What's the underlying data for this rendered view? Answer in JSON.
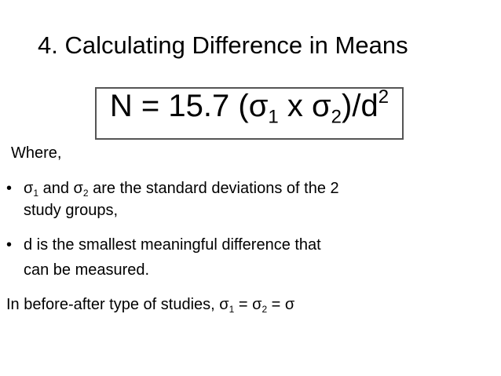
{
  "title": "4. Calculating Difference in Means",
  "formula": {
    "prefix": "N = 15.7 (",
    "sigma": "σ",
    "sub1": "1",
    "times": " x ",
    "sub2": "2",
    "suffix": ")/d",
    "sup": "2"
  },
  "where": "Where,",
  "bullets": [
    {
      "sigma": "σ",
      "sub1": "1",
      "mid": " and ",
      "sub2": "2",
      "rest": " are the standard deviations of the 2",
      "cont": "study groups,"
    },
    {
      "text": "d is the smallest meaningful difference that",
      "cont": "can be measured."
    }
  ],
  "bullet_char": "•",
  "last": {
    "text": "In before-after type of studies, ",
    "sigma": "σ",
    "sub1": "1",
    "eq": " = ",
    "sub2": "2",
    "tail": " = "
  }
}
